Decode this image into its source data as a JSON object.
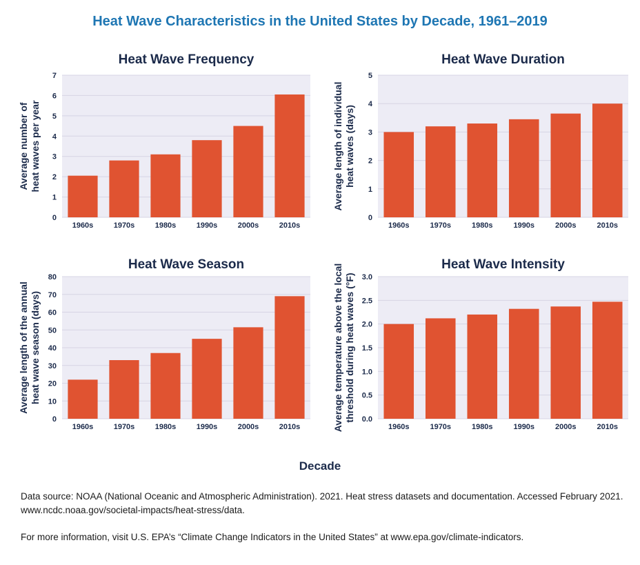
{
  "title": "Heat Wave Characteristics in the United States by Decade, 1961–2019",
  "shared_xlabel": "Decade",
  "footnotes": {
    "source": "Data source: NOAA (National Oceanic and Atmospheric Administration). 2021. Heat stress datasets and documentation. Accessed February 2021. www.ncdc.noaa.gov/societal-impacts/heat-stress/data.",
    "info": "For more information, visit U.S. EPA’s “Climate Change Indicators in the United States” at www.epa.gov/climate-indicators."
  },
  "colors": {
    "bar": "#e05331",
    "plot_background": "#edecf5",
    "grid": "#d6d4e4",
    "title": "#1e76b3",
    "text": "#1b2a4a"
  },
  "chart_data": [
    {
      "type": "bar",
      "title": "Heat Wave Frequency",
      "ylabel_lines": [
        "Average number of",
        "heat waves per year"
      ],
      "categories": [
        "1960s",
        "1970s",
        "1980s",
        "1990s",
        "2000s",
        "2010s"
      ],
      "values": [
        2.05,
        2.8,
        3.1,
        3.8,
        4.5,
        6.05
      ],
      "ylim": [
        0,
        7
      ],
      "yticks": [
        "0",
        "1",
        "2",
        "3",
        "4",
        "5",
        "6",
        "7"
      ],
      "grid": true
    },
    {
      "type": "bar",
      "title": "Heat Wave Duration",
      "ylabel_lines": [
        "Average length of individual",
        "heat waves (days)"
      ],
      "categories": [
        "1960s",
        "1970s",
        "1980s",
        "1990s",
        "2000s",
        "2010s"
      ],
      "values": [
        3.0,
        3.2,
        3.3,
        3.45,
        3.65,
        4.0
      ],
      "ylim": [
        0,
        5
      ],
      "yticks": [
        "0",
        "1",
        "2",
        "3",
        "4",
        "5"
      ],
      "grid": true
    },
    {
      "type": "bar",
      "title": "Heat Wave Season",
      "ylabel_lines": [
        "Average length of the annual",
        "heat wave season (days)"
      ],
      "categories": [
        "1960s",
        "1970s",
        "1980s",
        "1990s",
        "2000s",
        "2010s"
      ],
      "values": [
        22,
        33,
        37,
        45,
        51.5,
        69
      ],
      "ylim": [
        0,
        80
      ],
      "yticks": [
        "0",
        "10",
        "20",
        "30",
        "40",
        "50",
        "60",
        "70",
        "80"
      ],
      "grid": true
    },
    {
      "type": "bar",
      "title": "Heat Wave Intensity",
      "ylabel_lines": [
        "Average temperature above the local",
        "threshold during heat waves (°F)"
      ],
      "categories": [
        "1960s",
        "1970s",
        "1980s",
        "1990s",
        "2000s",
        "2010s"
      ],
      "values": [
        2.0,
        2.12,
        2.2,
        2.32,
        2.37,
        2.47
      ],
      "ylim": [
        0,
        3
      ],
      "yticks": [
        "0.0",
        "0.5",
        "1.0",
        "1.5",
        "2.0",
        "2.5",
        "3.0"
      ],
      "grid": true
    }
  ]
}
